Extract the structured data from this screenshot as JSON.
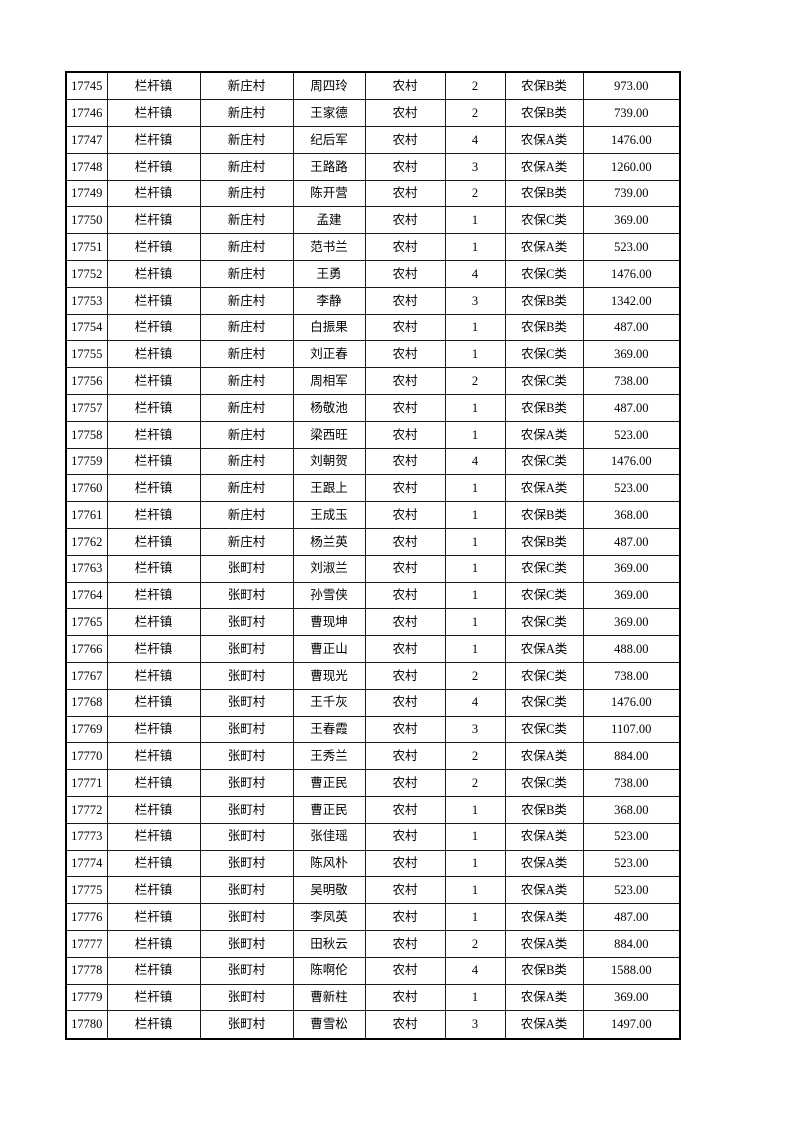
{
  "page": {
    "background_color": "#ffffff",
    "border_color": "#000000",
    "text_color": "#000000"
  },
  "table": {
    "columns": [
      "serial-number",
      "town",
      "village",
      "name",
      "residence-type",
      "person-count",
      "insurance-category",
      "amount"
    ],
    "rows": [
      [
        "17745",
        "栏杆镇",
        "新庄村",
        "周四玲",
        "农村",
        "2",
        "农保B类",
        "973.00"
      ],
      [
        "17746",
        "栏杆镇",
        "新庄村",
        "王家德",
        "农村",
        "2",
        "农保B类",
        "739.00"
      ],
      [
        "17747",
        "栏杆镇",
        "新庄村",
        "纪后军",
        "农村",
        "4",
        "农保A类",
        "1476.00"
      ],
      [
        "17748",
        "栏杆镇",
        "新庄村",
        "王路路",
        "农村",
        "3",
        "农保A类",
        "1260.00"
      ],
      [
        "17749",
        "栏杆镇",
        "新庄村",
        "陈开营",
        "农村",
        "2",
        "农保B类",
        "739.00"
      ],
      [
        "17750",
        "栏杆镇",
        "新庄村",
        "孟建",
        "农村",
        "1",
        "农保C类",
        "369.00"
      ],
      [
        "17751",
        "栏杆镇",
        "新庄村",
        "范书兰",
        "农村",
        "1",
        "农保A类",
        "523.00"
      ],
      [
        "17752",
        "栏杆镇",
        "新庄村",
        "王勇",
        "农村",
        "4",
        "农保C类",
        "1476.00"
      ],
      [
        "17753",
        "栏杆镇",
        "新庄村",
        "李静",
        "农村",
        "3",
        "农保B类",
        "1342.00"
      ],
      [
        "17754",
        "栏杆镇",
        "新庄村",
        "白振果",
        "农村",
        "1",
        "农保B类",
        "487.00"
      ],
      [
        "17755",
        "栏杆镇",
        "新庄村",
        "刘正春",
        "农村",
        "1",
        "农保C类",
        "369.00"
      ],
      [
        "17756",
        "栏杆镇",
        "新庄村",
        "周相军",
        "农村",
        "2",
        "农保C类",
        "738.00"
      ],
      [
        "17757",
        "栏杆镇",
        "新庄村",
        "杨敬池",
        "农村",
        "1",
        "农保B类",
        "487.00"
      ],
      [
        "17758",
        "栏杆镇",
        "新庄村",
        "梁西旺",
        "农村",
        "1",
        "农保A类",
        "523.00"
      ],
      [
        "17759",
        "栏杆镇",
        "新庄村",
        "刘朝贺",
        "农村",
        "4",
        "农保C类",
        "1476.00"
      ],
      [
        "17760",
        "栏杆镇",
        "新庄村",
        "王跟上",
        "农村",
        "1",
        "农保A类",
        "523.00"
      ],
      [
        "17761",
        "栏杆镇",
        "新庄村",
        "王成玉",
        "农村",
        "1",
        "农保B类",
        "368.00"
      ],
      [
        "17762",
        "栏杆镇",
        "新庄村",
        "杨兰英",
        "农村",
        "1",
        "农保B类",
        "487.00"
      ],
      [
        "17763",
        "栏杆镇",
        "张町村",
        "刘淑兰",
        "农村",
        "1",
        "农保C类",
        "369.00"
      ],
      [
        "17764",
        "栏杆镇",
        "张町村",
        "孙雪侠",
        "农村",
        "1",
        "农保C类",
        "369.00"
      ],
      [
        "17765",
        "栏杆镇",
        "张町村",
        "曹现坤",
        "农村",
        "1",
        "农保C类",
        "369.00"
      ],
      [
        "17766",
        "栏杆镇",
        "张町村",
        "曹正山",
        "农村",
        "1",
        "农保A类",
        "488.00"
      ],
      [
        "17767",
        "栏杆镇",
        "张町村",
        "曹现光",
        "农村",
        "2",
        "农保C类",
        "738.00"
      ],
      [
        "17768",
        "栏杆镇",
        "张町村",
        "王千灰",
        "农村",
        "4",
        "农保C类",
        "1476.00"
      ],
      [
        "17769",
        "栏杆镇",
        "张町村",
        "王春霞",
        "农村",
        "3",
        "农保C类",
        "1107.00"
      ],
      [
        "17770",
        "栏杆镇",
        "张町村",
        "王秀兰",
        "农村",
        "2",
        "农保A类",
        "884.00"
      ],
      [
        "17771",
        "栏杆镇",
        "张町村",
        "曹正民",
        "农村",
        "2",
        "农保C类",
        "738.00"
      ],
      [
        "17772",
        "栏杆镇",
        "张町村",
        "曹正民",
        "农村",
        "1",
        "农保B类",
        "368.00"
      ],
      [
        "17773",
        "栏杆镇",
        "张町村",
        "张佳瑶",
        "农村",
        "1",
        "农保A类",
        "523.00"
      ],
      [
        "17774",
        "栏杆镇",
        "张町村",
        "陈风朴",
        "农村",
        "1",
        "农保A类",
        "523.00"
      ],
      [
        "17775",
        "栏杆镇",
        "张町村",
        "吴明敬",
        "农村",
        "1",
        "农保A类",
        "523.00"
      ],
      [
        "17776",
        "栏杆镇",
        "张町村",
        "李凤英",
        "农村",
        "1",
        "农保A类",
        "487.00"
      ],
      [
        "17777",
        "栏杆镇",
        "张町村",
        "田秋云",
        "农村",
        "2",
        "农保A类",
        "884.00"
      ],
      [
        "17778",
        "栏杆镇",
        "张町村",
        "陈啊伦",
        "农村",
        "4",
        "农保B类",
        "1588.00"
      ],
      [
        "17779",
        "栏杆镇",
        "张町村",
        "曹新柱",
        "农村",
        "1",
        "农保A类",
        "369.00"
      ],
      [
        "17780",
        "栏杆镇",
        "张町村",
        "曹雪松",
        "农村",
        "3",
        "农保A类",
        "1497.00"
      ]
    ]
  }
}
